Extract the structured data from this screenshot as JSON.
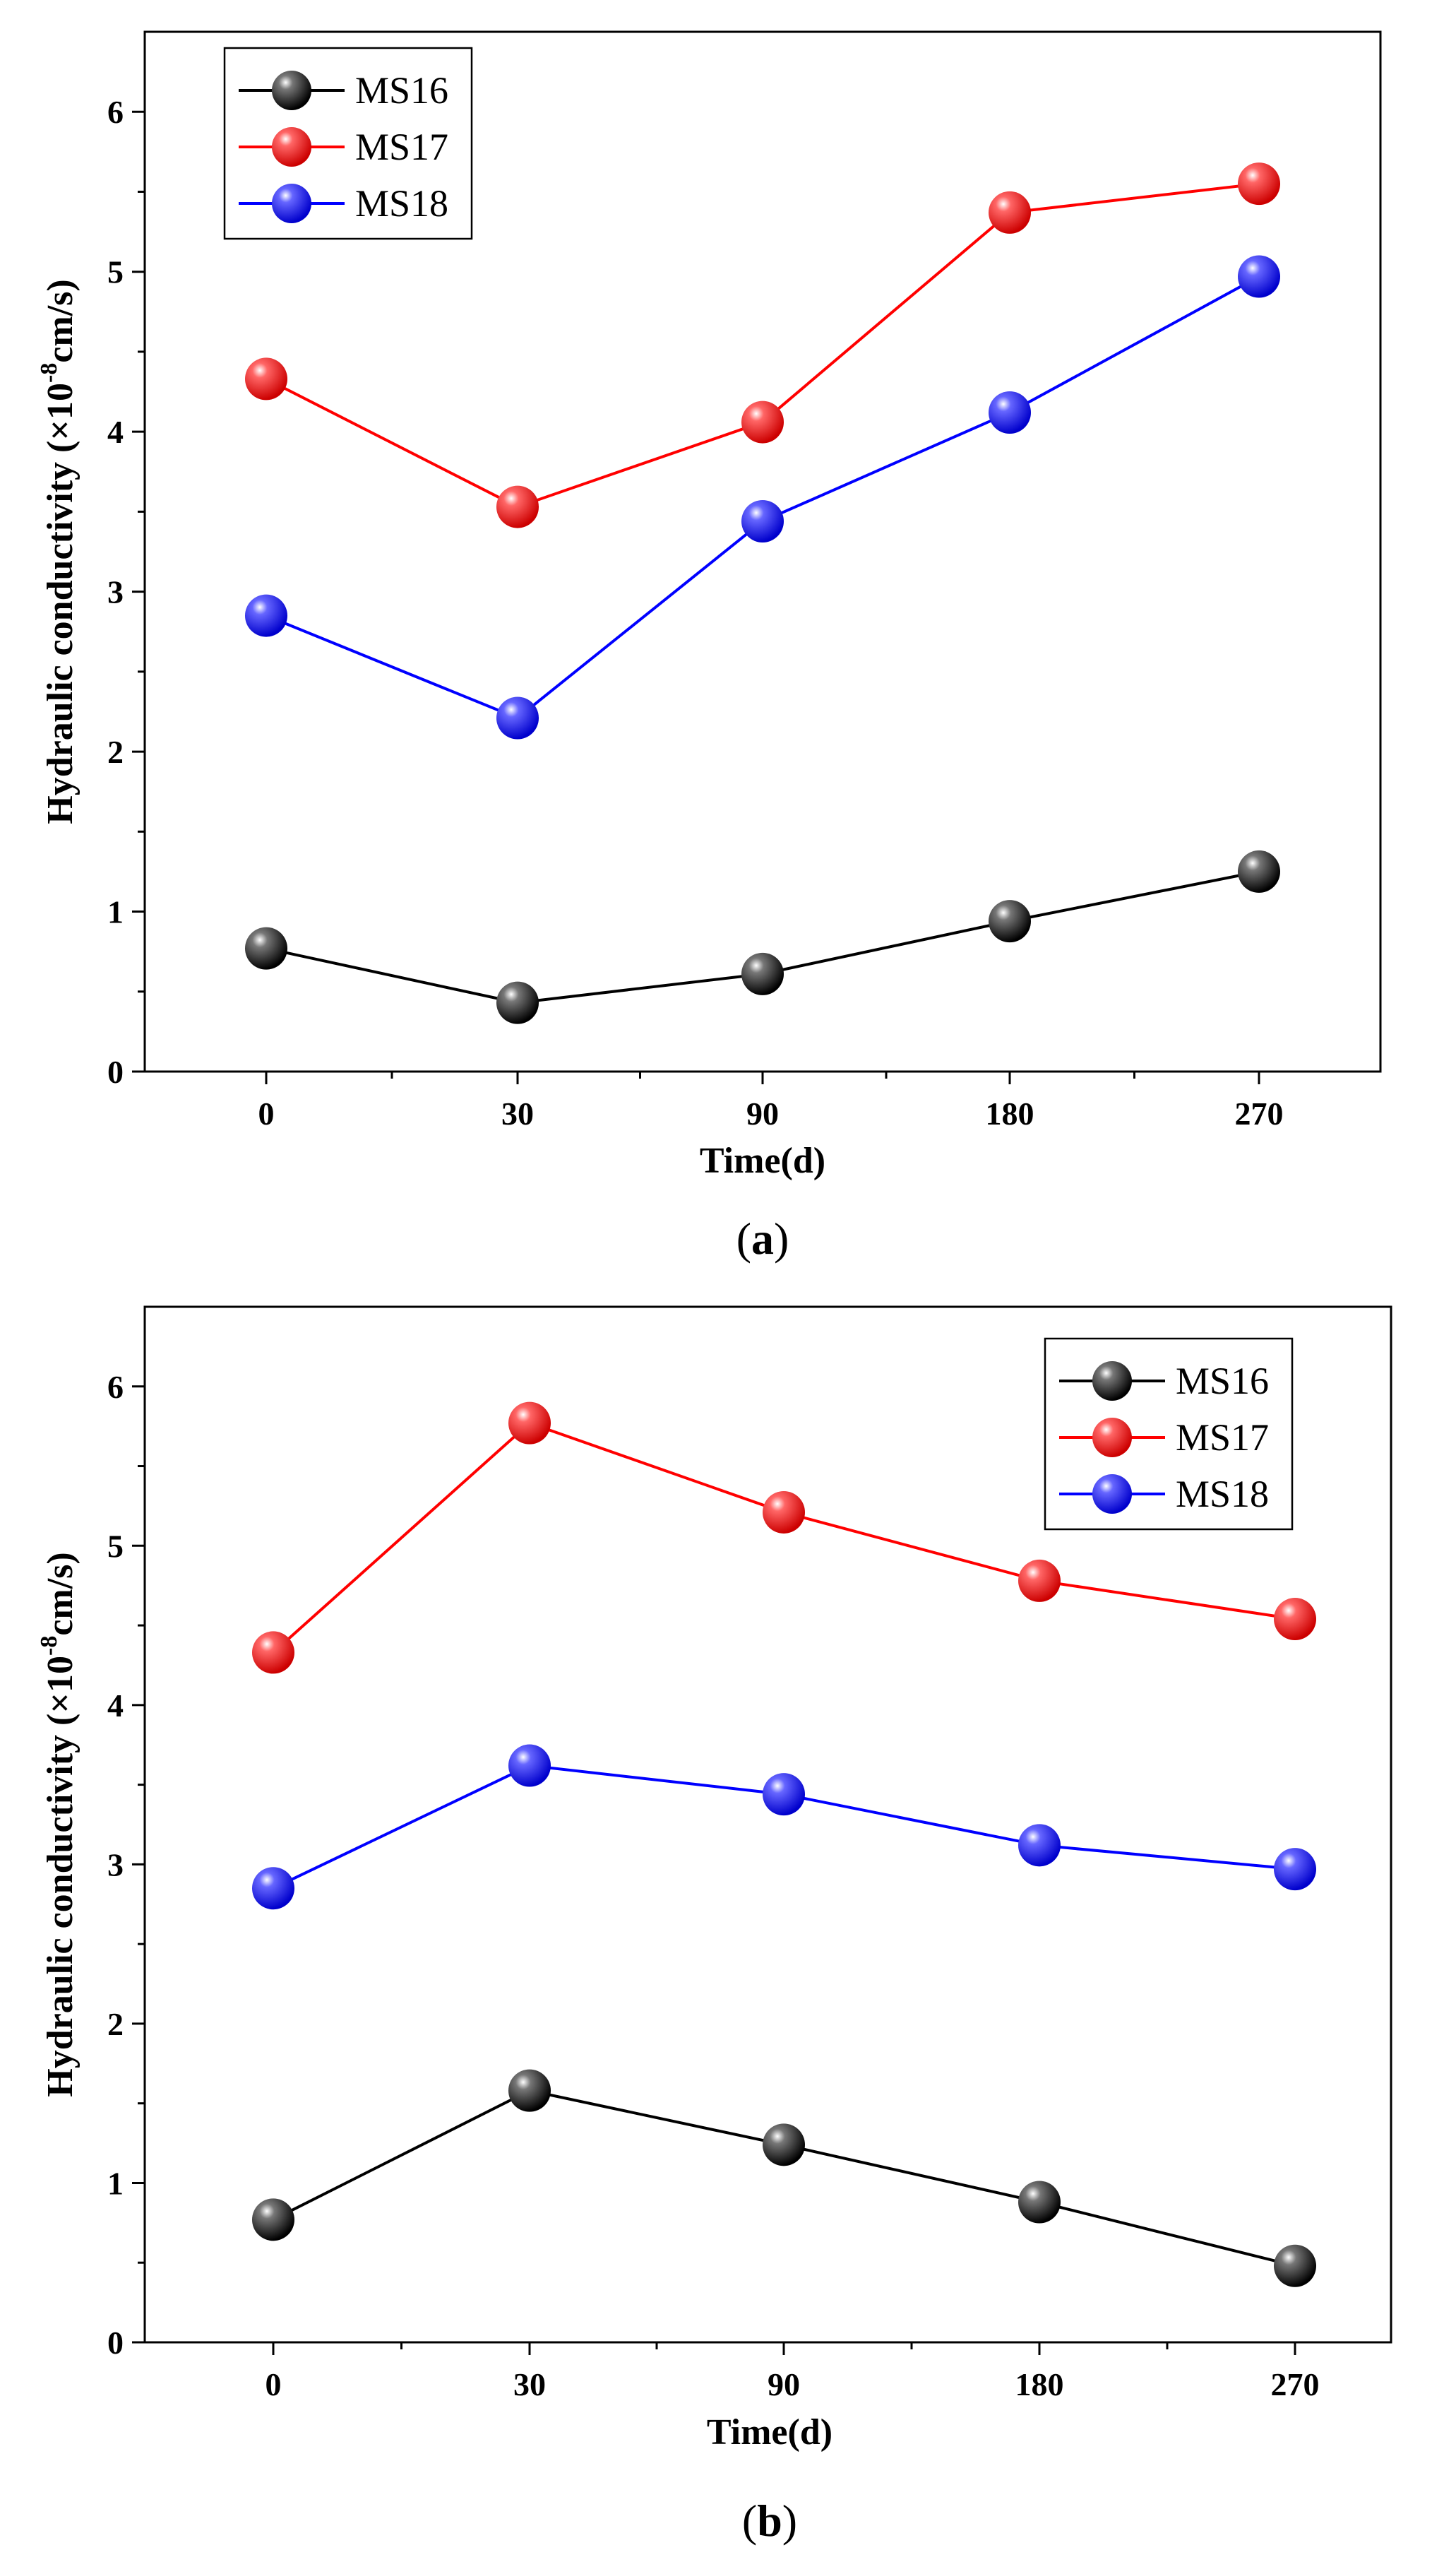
{
  "chart_data": [
    {
      "type": "line",
      "caption": "a",
      "xlabel": "Time(d)",
      "ylabel_prefix": "Hydraulic conductivity (×10",
      "ylabel_exp": "-8",
      "ylabel_suffix": "cm/s)",
      "categories": [
        "0",
        "30",
        "90",
        "180",
        "270"
      ],
      "ylim": [
        0,
        6.5
      ],
      "yticks": [
        "0",
        "1",
        "2",
        "3",
        "4",
        "5",
        "6"
      ],
      "legend_position": "top-left",
      "series": [
        {
          "name": "MS16",
          "color": "#000000",
          "values": [
            0.77,
            0.43,
            0.61,
            0.94,
            1.25
          ]
        },
        {
          "name": "MS17",
          "color": "#ff0000",
          "values": [
            4.33,
            3.53,
            4.06,
            5.37,
            5.55
          ]
        },
        {
          "name": "MS18",
          "color": "#0000ff",
          "values": [
            2.85,
            2.21,
            3.44,
            4.12,
            4.97
          ]
        }
      ]
    },
    {
      "type": "line",
      "caption": "b",
      "xlabel": "Time(d)",
      "ylabel_prefix": "Hydraulic conductivity (×10",
      "ylabel_exp": "-8",
      "ylabel_suffix": "cm/s)",
      "categories": [
        "0",
        "30",
        "90",
        "180",
        "270"
      ],
      "ylim": [
        0,
        6.5
      ],
      "yticks": [
        "0",
        "1",
        "2",
        "3",
        "4",
        "5",
        "6"
      ],
      "legend_position": "top-right",
      "series": [
        {
          "name": "MS16",
          "color": "#000000",
          "values": [
            0.77,
            1.58,
            1.24,
            0.88,
            0.48
          ]
        },
        {
          "name": "MS17",
          "color": "#ff0000",
          "values": [
            4.33,
            5.77,
            5.21,
            4.78,
            4.54
          ]
        },
        {
          "name": "MS18",
          "color": "#0000ff",
          "values": [
            2.85,
            3.62,
            3.44,
            3.12,
            2.97
          ]
        }
      ]
    }
  ]
}
